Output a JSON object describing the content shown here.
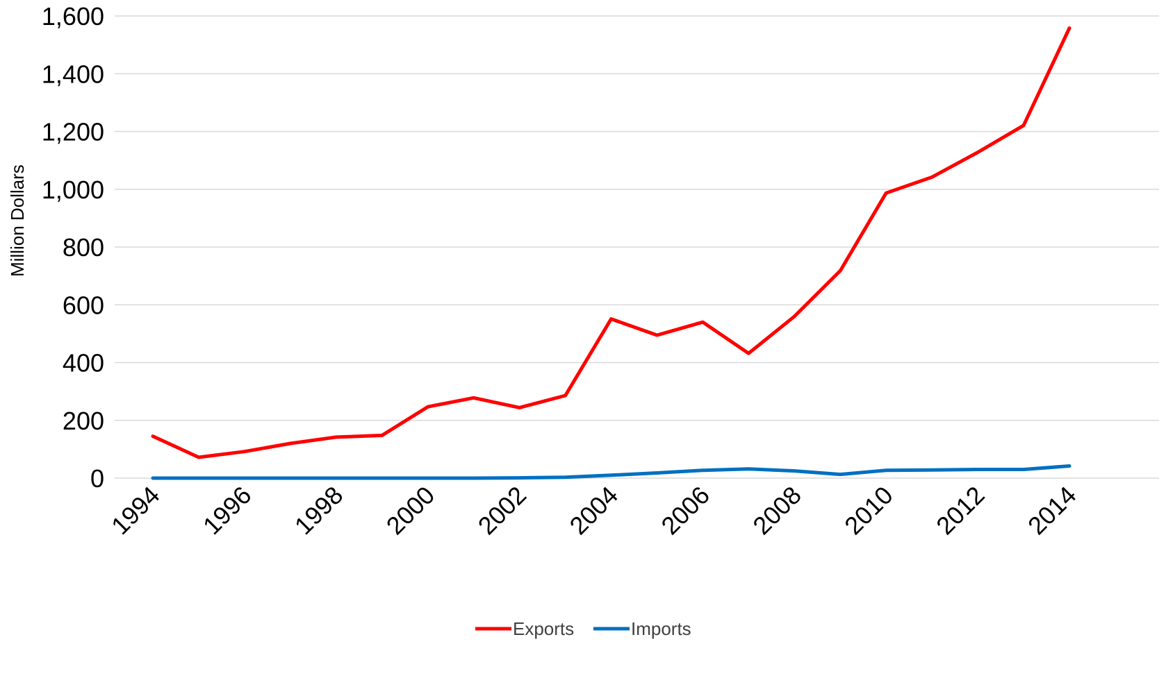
{
  "chart_data": {
    "type": "line",
    "title": "",
    "xlabel": "",
    "ylabel": "Million Dollars",
    "x": [
      1994,
      1995,
      1996,
      1997,
      1998,
      1999,
      2000,
      2001,
      2002,
      2003,
      2004,
      2005,
      2006,
      2007,
      2008,
      2009,
      2010,
      2011,
      2012,
      2013,
      2014
    ],
    "x_tick_labels": [
      "1994",
      "1996",
      "1998",
      "2000",
      "2002",
      "2004",
      "2006",
      "2008",
      "2010",
      "2012",
      "2014"
    ],
    "ylim": [
      0,
      1600
    ],
    "y_tick_labels": [
      "0",
      "200",
      "400",
      "600",
      "800",
      "1,000",
      "1,200",
      "1,400",
      "1,600"
    ],
    "grid": "horizontal",
    "legend_position": "bottom",
    "series": [
      {
        "name": "Exports",
        "color": "#ff0000",
        "values": [
          145,
          72,
          92,
          120,
          142,
          148,
          247,
          278,
          244,
          286,
          551,
          495,
          540,
          432,
          560,
          718,
          987,
          1042,
          1128,
          1221,
          1558
        ]
      },
      {
        "name": "Imports",
        "color": "#0070c0",
        "values": [
          0,
          0,
          0,
          0,
          0,
          0,
          0,
          0,
          1,
          3,
          10,
          18,
          27,
          32,
          25,
          13,
          27,
          28,
          30,
          30,
          42
        ]
      }
    ]
  }
}
